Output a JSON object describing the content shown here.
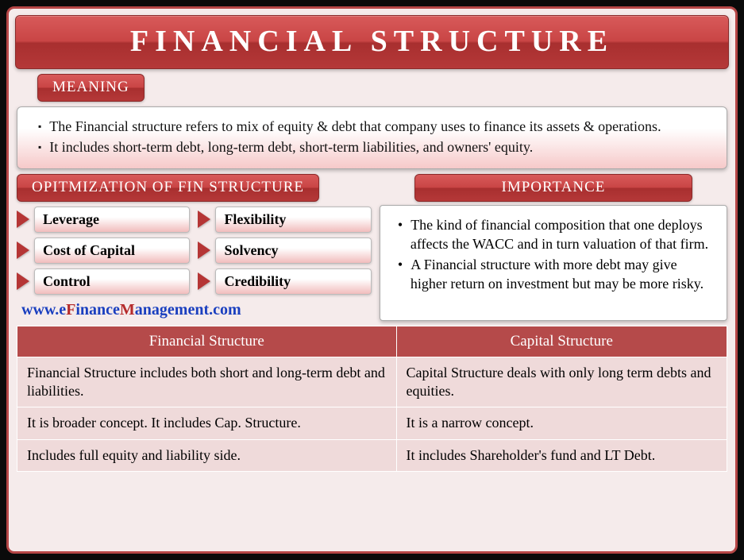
{
  "colors": {
    "frame_border": "#b54646",
    "header_grad_top": "#d85a5a",
    "header_grad_bot": "#b53838",
    "background": "#f5ebeb",
    "pill_grad_bot": "#f1bcbc",
    "table_header": "#b54a4a",
    "table_cell": "#efdada",
    "arrow": "#b53535"
  },
  "typography": {
    "title_fontsize": 38,
    "section_header_fontsize": 19,
    "body_fontsize": 18
  },
  "title": "FINANCIAL STRUCTURE",
  "meaning": {
    "header": "MEANING",
    "items": [
      "The Financial structure refers to mix of equity & debt that company uses to finance its assets & operations.",
      "It includes short-term debt, long-term debt, short-term liabilities, and owners' equity."
    ]
  },
  "optimization": {
    "header": "OPITMIZATION OF FIN STRUCTURE",
    "items": [
      "Leverage",
      "Flexibility",
      "Cost of Capital",
      "Solvency",
      "Control",
      "Credibility"
    ]
  },
  "importance": {
    "header": "IMPORTANCE",
    "items": [
      "The kind of financial composition that one deploys affects the WACC and in turn valuation of that firm.",
      "A Financial structure with more debt may give higher return on investment but may be more risky."
    ]
  },
  "url": {
    "prefix": "www.",
    "e": "e",
    "f": "F",
    "inance": "inance",
    "m": "M",
    "rest": "anagement.com"
  },
  "table": {
    "headers": [
      "Financial Structure",
      "Capital Structure"
    ],
    "rows": [
      [
        "Financial Structure includes both short and long-term debt and liabilities.",
        "Capital Structure deals with only long term debts and equities."
      ],
      [
        "It is broader concept. It includes Cap. Structure.",
        "It is a narrow concept."
      ],
      [
        "Includes full equity and liability side.",
        "It includes Shareholder's fund and LT Debt."
      ]
    ]
  }
}
